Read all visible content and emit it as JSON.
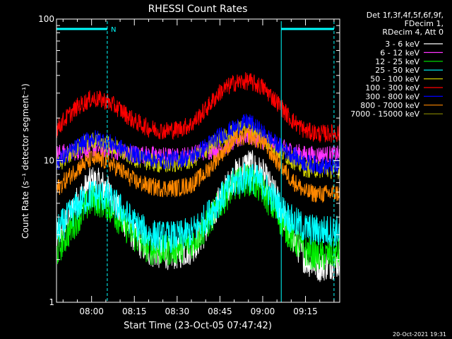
{
  "chart_data": {
    "type": "line",
    "title": "RHESSI Count Rates",
    "xlabel": "Start Time (23-Oct-05 07:47:42)",
    "ylabel": "Count Rate (s⁻¹ detector segment⁻¹)",
    "y_scale": "log",
    "ylim": [
      1,
      100
    ],
    "xlim": [
      "07:47:42",
      "09:27:00"
    ],
    "x_ticks": [
      "08:00",
      "08:15",
      "08:30",
      "08:45",
      "09:00",
      "09:15"
    ],
    "y_ticks": [
      "1",
      "10",
      "100"
    ],
    "legend_header": [
      "Det 1f,3f,4f,5f,6f,9f,",
      "FDecim 1,",
      "RDecim 4, Att 0"
    ],
    "legend_position": "top-right, outside plot",
    "annotation_N": "N",
    "night_intervals": [
      {
        "start": "07:47:42",
        "end": "08:05:30"
      },
      {
        "start": "09:06:30",
        "end": "09:25:00"
      }
    ],
    "series": [
      {
        "name": "3 - 6 keV",
        "color": "#ffffff",
        "x": [
          "07:47",
          "07:50",
          "07:55",
          "08:00",
          "08:05",
          "08:10",
          "08:15",
          "08:20",
          "08:25",
          "08:30",
          "08:35",
          "08:40",
          "08:45",
          "08:50",
          "08:55",
          "09:00",
          "09:05",
          "09:10",
          "09:15",
          "09:20",
          "09:25"
        ],
        "values": [
          2.6,
          3.3,
          5.2,
          7.2,
          6.5,
          4.2,
          2.9,
          2.3,
          2.2,
          2.2,
          2.4,
          3.2,
          5.4,
          7.8,
          9.6,
          8.0,
          5.4,
          3.0,
          2.0,
          1.8,
          1.9
        ]
      },
      {
        "name": "6 - 12 keV",
        "color": "#ff33ff",
        "x": [
          "07:47",
          "07:55",
          "08:00",
          "08:05",
          "08:15",
          "08:30",
          "08:45",
          "08:55",
          "09:05",
          "09:15",
          "09:25"
        ],
        "values": [
          11.2,
          11.6,
          12.3,
          12.0,
          11.2,
          10.6,
          12.2,
          15.2,
          12.6,
          11.0,
          11.0
        ]
      },
      {
        "name": "12 - 25 keV",
        "color": "#00ee00",
        "x": [
          "07:47",
          "07:50",
          "07:55",
          "08:00",
          "08:05",
          "08:10",
          "08:15",
          "08:20",
          "08:25",
          "08:30",
          "08:35",
          "08:40",
          "08:45",
          "08:50",
          "08:55",
          "09:00",
          "09:05",
          "09:10",
          "09:15",
          "09:20",
          "09:25"
        ],
        "values": [
          2.1,
          2.7,
          3.9,
          5.3,
          5.0,
          3.8,
          2.9,
          2.4,
          2.3,
          2.4,
          2.6,
          3.4,
          5.0,
          6.7,
          7.4,
          6.2,
          4.2,
          2.9,
          2.3,
          2.1,
          2.2
        ]
      },
      {
        "name": "25 - 50 keV",
        "color": "#00ffff",
        "x": [
          "07:47",
          "07:50",
          "07:55",
          "08:00",
          "08:05",
          "08:10",
          "08:15",
          "08:20",
          "08:25",
          "08:30",
          "08:35",
          "08:40",
          "08:45",
          "08:50",
          "08:55",
          "09:00",
          "09:05",
          "09:10",
          "09:15",
          "09:20",
          "09:25"
        ],
        "values": [
          3.0,
          3.6,
          4.8,
          5.8,
          5.6,
          4.6,
          3.6,
          3.0,
          2.9,
          2.9,
          3.1,
          3.9,
          5.3,
          7.0,
          7.8,
          6.9,
          5.0,
          3.8,
          3.3,
          3.2,
          3.2
        ]
      },
      {
        "name": "50 - 100 keV",
        "color": "#cccc00",
        "x": [
          "07:47",
          "07:55",
          "08:00",
          "08:05",
          "08:15",
          "08:25",
          "08:35",
          "08:45",
          "08:55",
          "09:05",
          "09:15",
          "09:25"
        ],
        "values": [
          9.0,
          12.2,
          14.0,
          13.2,
          10.4,
          9.3,
          10.0,
          14.2,
          18.0,
          12.0,
          8.8,
          8.6
        ]
      },
      {
        "name": "100 - 300 keV",
        "color": "#ff0000",
        "x": [
          "07:47",
          "07:50",
          "07:55",
          "08:00",
          "08:05",
          "08:10",
          "08:15",
          "08:20",
          "08:25",
          "08:30",
          "08:35",
          "08:40",
          "08:45",
          "08:50",
          "08:55",
          "09:00",
          "09:05",
          "09:10",
          "09:15",
          "09:20",
          "09:25"
        ],
        "values": [
          16.0,
          19.0,
          24.0,
          27.5,
          26.5,
          23.0,
          19.0,
          17.0,
          16.3,
          16.6,
          18.0,
          23.0,
          30.5,
          35.5,
          36.5,
          33.0,
          26.0,
          19.5,
          16.2,
          15.5,
          15.6
        ]
      },
      {
        "name": "300 - 800 keV",
        "color": "#0000ff",
        "x": [
          "07:47",
          "07:55",
          "08:00",
          "08:05",
          "08:15",
          "08:25",
          "08:35",
          "08:45",
          "08:55",
          "09:05",
          "09:15",
          "09:25"
        ],
        "values": [
          9.5,
          12.5,
          14.5,
          13.8,
          11.0,
          10.0,
          10.6,
          15.0,
          19.0,
          13.0,
          9.6,
          9.0
        ]
      },
      {
        "name": "800 - 7000 keV",
        "color": "#ff8800",
        "x": [
          "07:47",
          "07:50",
          "07:55",
          "08:00",
          "08:05",
          "08:10",
          "08:15",
          "08:20",
          "08:25",
          "08:30",
          "08:35",
          "08:40",
          "08:45",
          "08:50",
          "08:55",
          "09:00",
          "09:05",
          "09:10",
          "09:15",
          "09:20",
          "09:25"
        ],
        "values": [
          6.0,
          7.0,
          8.8,
          10.3,
          10.0,
          8.6,
          7.2,
          6.6,
          6.4,
          6.4,
          6.8,
          8.2,
          11.0,
          14.0,
          15.0,
          13.5,
          10.0,
          7.4,
          6.0,
          5.8,
          5.9
        ]
      },
      {
        "name": "7000 - 15000 keV",
        "color": "#888800",
        "x": [],
        "values": []
      }
    ]
  },
  "footer_timestamp": "20-Oct-2021 19:31"
}
